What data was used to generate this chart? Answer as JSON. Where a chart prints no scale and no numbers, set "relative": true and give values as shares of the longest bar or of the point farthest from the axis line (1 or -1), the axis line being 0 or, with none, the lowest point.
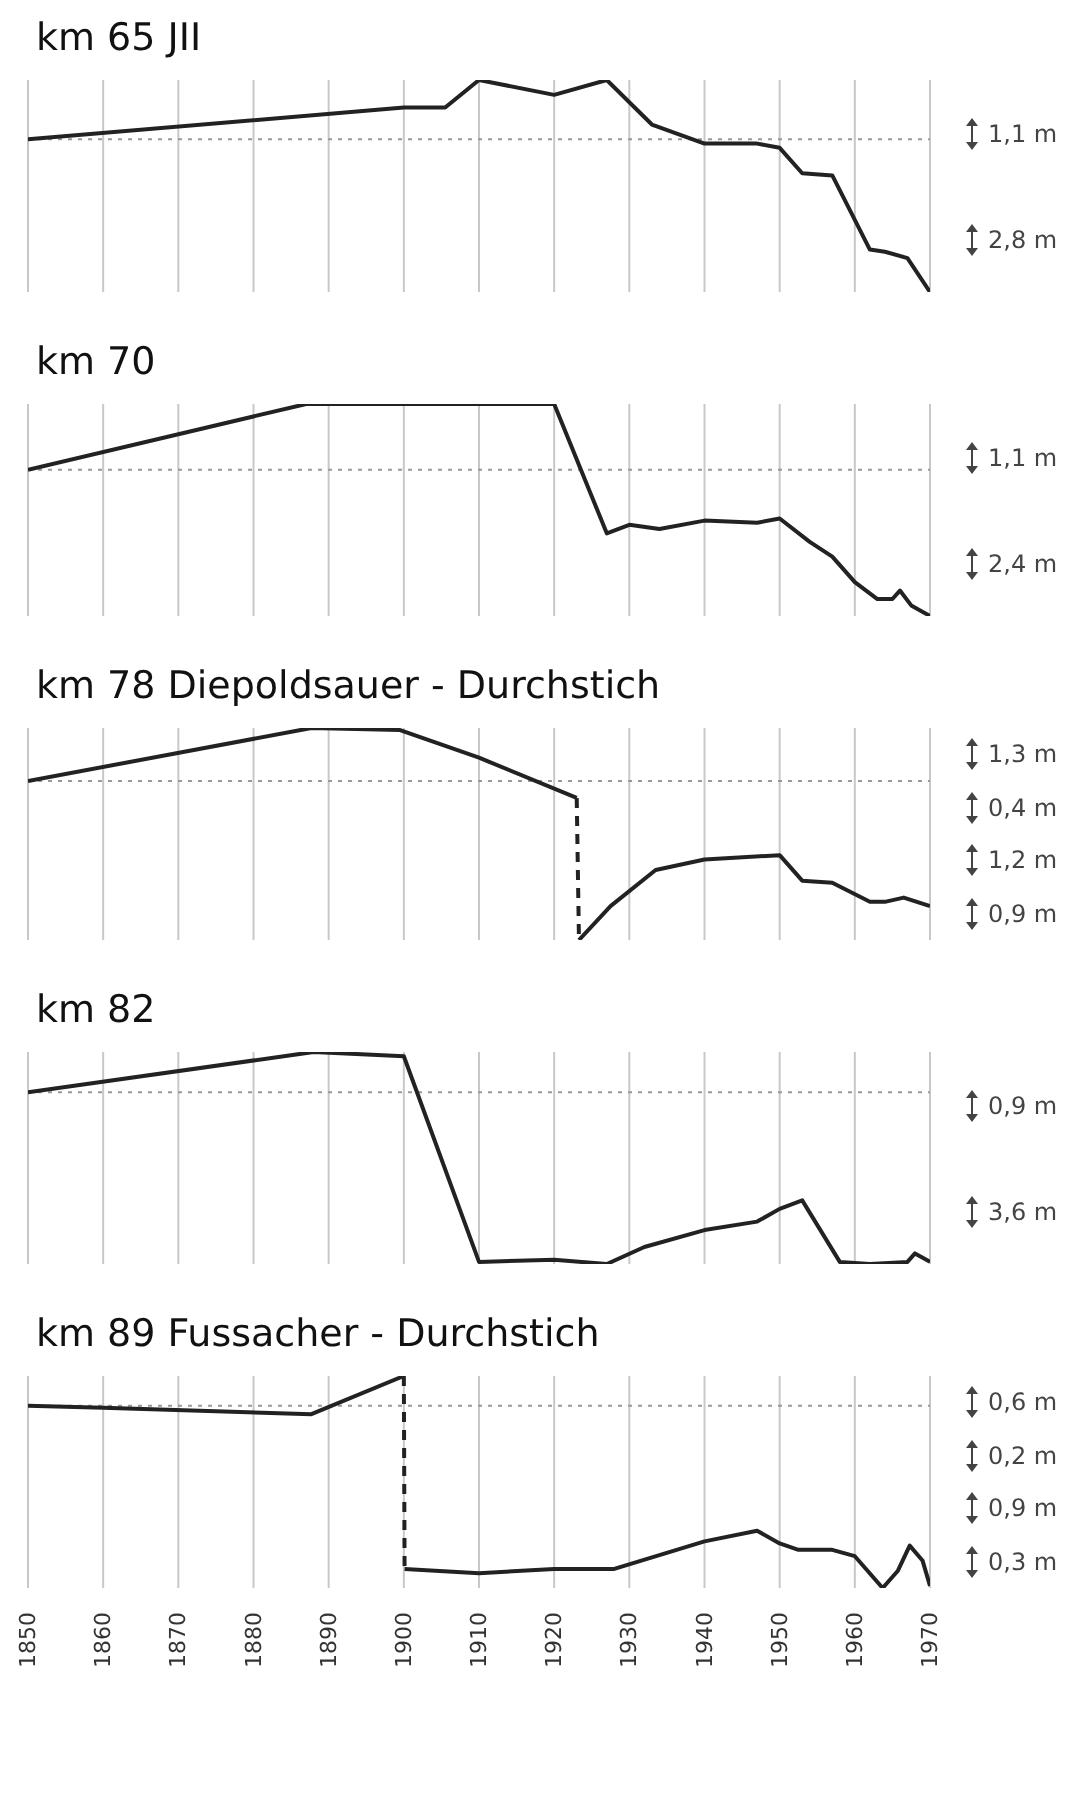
{
  "chart_data": [
    {
      "type": "line",
      "title": "km 65 JII",
      "relative": true,
      "grid": "x",
      "tick_labels": false,
      "xlim": [
        1850,
        1970
      ],
      "xticks": [
        1850,
        1860,
        1870,
        1880,
        1890,
        1900,
        1910,
        1920,
        1930,
        1940,
        1950,
        1960,
        1970
      ],
      "series": [
        {
          "color": "#222222",
          "x": [
            1850,
            1900,
            1905.5,
            1910,
            1920,
            1927,
            1933,
            1940,
            1947,
            1950,
            1953,
            1957,
            1962,
            1964,
            1967,
            1970
          ],
          "values": [
            0.72,
            0.87,
            0.87,
            1,
            0.93,
            1,
            0.79,
            0.7,
            0.7,
            0.68,
            0.56,
            0.55,
            0.2,
            0.19,
            0.16,
            0
          ]
        }
      ],
      "ref_lines": [
        {
          "axis": "y",
          "value": 0.72,
          "line_style": "dotted",
          "color": "#999999"
        }
      ],
      "annotations": [
        "1,1 m",
        "2,8 m"
      ]
    },
    {
      "type": "line",
      "title": "km 70",
      "relative": true,
      "grid": "x",
      "tick_labels": false,
      "xlim": [
        1850,
        1970
      ],
      "xticks": [
        1850,
        1860,
        1870,
        1880,
        1890,
        1900,
        1910,
        1920,
        1930,
        1940,
        1950,
        1960,
        1970
      ],
      "series": [
        {
          "color": "#222222",
          "x": [
            1850,
            1887,
            1920,
            1927,
            1930,
            1934,
            1940,
            1947,
            1950,
            1954,
            1957,
            1960,
            1963,
            1965,
            1966,
            1967.5,
            1970
          ],
          "values": [
            0.69,
            1,
            1,
            0.39,
            0.43,
            0.41,
            0.45,
            0.44,
            0.46,
            0.35,
            0.28,
            0.16,
            0.08,
            0.08,
            0.12,
            0.05,
            0
          ]
        }
      ],
      "ref_lines": [
        {
          "axis": "y",
          "value": 0.69,
          "line_style": "dotted",
          "color": "#999999"
        }
      ],
      "annotations": [
        "1,1 m",
        "2,4 m"
      ]
    },
    {
      "type": "line",
      "title": "km 78 Diepoldsauer - Durchstich",
      "relative": true,
      "grid": "x",
      "tick_labels": false,
      "xlim": [
        1850,
        1970
      ],
      "xticks": [
        1850,
        1860,
        1870,
        1880,
        1890,
        1900,
        1910,
        1920,
        1930,
        1940,
        1950,
        1960,
        1970
      ],
      "series": [
        {
          "color": "#222222",
          "x": [
            1850,
            1887.7,
            1899.5,
            1910,
            1923
          ],
          "values": [
            0.75,
            1,
            0.99,
            0.86,
            0.67
          ]
        },
        {
          "color": "#222222",
          "line_style": "dashed",
          "x": [
            1923,
            1923.3
          ],
          "values": [
            0.67,
            0
          ]
        },
        {
          "color": "#222222",
          "x": [
            1923.3,
            1927.5,
            1933.5,
            1940,
            1950,
            1953,
            1957,
            1962,
            1964,
            1966.5,
            1970
          ],
          "values": [
            0,
            0.16,
            0.33,
            0.38,
            0.4,
            0.28,
            0.27,
            0.18,
            0.18,
            0.2,
            0.16
          ]
        }
      ],
      "ref_lines": [
        {
          "axis": "y",
          "value": 0.75,
          "line_style": "dotted",
          "color": "#999999"
        }
      ],
      "annotations": [
        "1,3 m",
        "0,4 m",
        "1,2 m",
        "0,9 m"
      ]
    },
    {
      "type": "line",
      "title": "km 82",
      "relative": true,
      "grid": "x",
      "tick_labels": false,
      "xlim": [
        1850,
        1970
      ],
      "xticks": [
        1850,
        1860,
        1870,
        1880,
        1890,
        1900,
        1910,
        1920,
        1930,
        1940,
        1950,
        1960,
        1970
      ],
      "series": [
        {
          "color": "#222222",
          "x": [
            1850,
            1888,
            1900,
            1910,
            1920,
            1927,
            1932,
            1940,
            1947,
            1950,
            1953,
            1958,
            1962,
            1967,
            1968,
            1970
          ],
          "values": [
            0.81,
            1,
            0.98,
            0.01,
            0.02,
            0,
            0.08,
            0.16,
            0.2,
            0.26,
            0.3,
            0.01,
            0,
            0.01,
            0.05,
            0.01
          ]
        }
      ],
      "ref_lines": [
        {
          "axis": "y",
          "value": 0.81,
          "line_style": "dotted",
          "color": "#999999"
        }
      ],
      "annotations": [
        "0,9 m",
        "3,6 m"
      ]
    },
    {
      "type": "line",
      "title": "km 89 Fussacher - Durchstich",
      "relative": true,
      "grid": "x",
      "tick_labels": "x",
      "xlim": [
        1850,
        1970
      ],
      "xticks": [
        1850,
        1860,
        1870,
        1880,
        1890,
        1900,
        1910,
        1920,
        1930,
        1940,
        1950,
        1960,
        1970
      ],
      "series": [
        {
          "color": "#222222",
          "x": [
            1850,
            1860,
            1887.7,
            1900
          ],
          "values": [
            0.86,
            0.85,
            0.82,
            1
          ]
        },
        {
          "color": "#222222",
          "line_style": "dashed",
          "x": [
            1900,
            1900.1
          ],
          "values": [
            1,
            0.09
          ]
        },
        {
          "color": "#222222",
          "x": [
            1900.1,
            1910,
            1920,
            1928,
            1940,
            1947,
            1950,
            1952.5,
            1957,
            1960,
            1963.7,
            1965.7,
            1967.3,
            1969,
            1970
          ],
          "values": [
            0.09,
            0.07,
            0.09,
            0.09,
            0.22,
            0.27,
            0.21,
            0.18,
            0.18,
            0.15,
            0,
            0.08,
            0.2,
            0.13,
            0.01
          ]
        }
      ],
      "ref_lines": [
        {
          "axis": "y",
          "value": 0.86,
          "line_style": "dotted",
          "color": "#999999"
        }
      ],
      "annotations": [
        "0,6 m",
        "0,2 m",
        "0,9 m",
        "0,3 m"
      ]
    }
  ]
}
